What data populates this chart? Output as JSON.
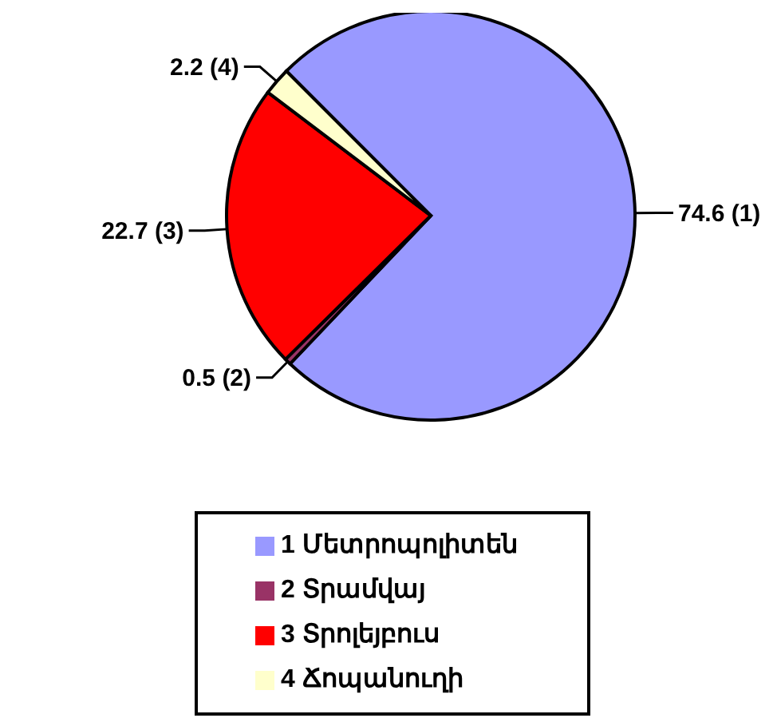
{
  "chart_data": {
    "type": "pie",
    "categories": [
      "1 Մետրոպոլիտեն",
      "2 Տրամվայ",
      "3 Տրոլեյբուս",
      "4 Ճոպանուղի"
    ],
    "values": [
      74.6,
      0.5,
      22.7,
      2.2
    ],
    "colors": [
      "#9999ff",
      "#993366",
      "#ff0000",
      "#ffffcc"
    ],
    "value_labels": [
      "74.6 (1)",
      "0.5 (2)",
      "22.7 (3)",
      "2.2 (4)"
    ],
    "legend": "bottom"
  }
}
